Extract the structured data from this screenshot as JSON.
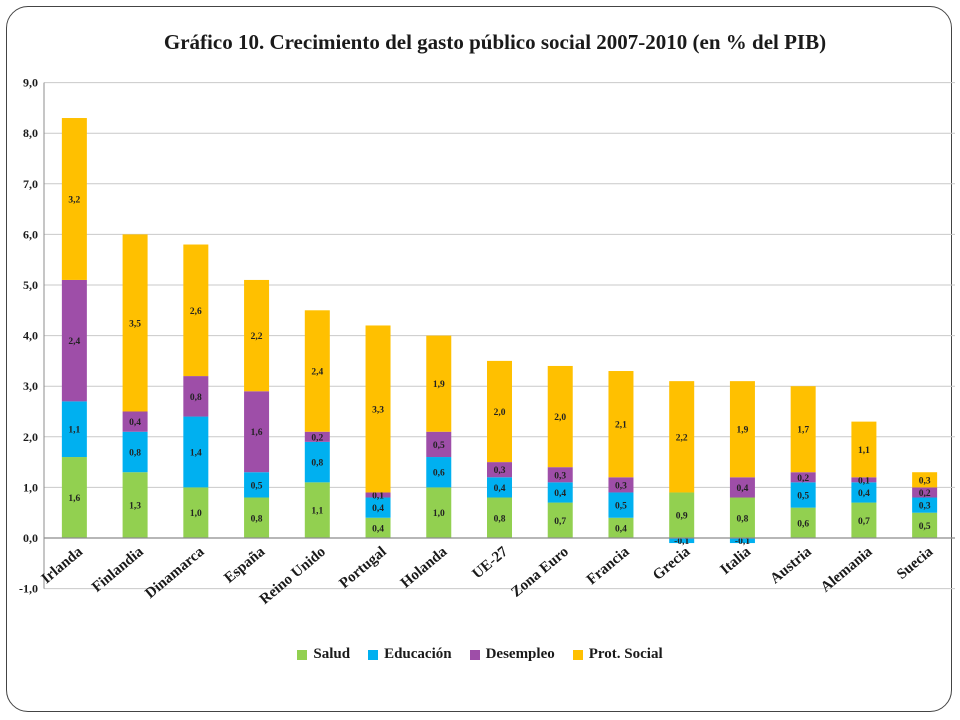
{
  "chart_data": {
    "type": "bar",
    "stacked": true,
    "title": "Gráfico 10. Crecimiento del gasto público social 2007-2010 (en % del PIB)",
    "categories": [
      "Irlanda",
      "Finlandia",
      "Dinamarca",
      "España",
      "Reino Unido",
      "Portugal",
      "Holanda",
      "UE-27",
      "Zona Euro",
      "Francia",
      "Grecia",
      "Italia",
      "Austria",
      "Alemania",
      "Suecia"
    ],
    "series": [
      {
        "name": "Salud",
        "color": "#92d050",
        "values": [
          1.6,
          1.3,
          1.0,
          0.8,
          1.1,
          0.4,
          1.0,
          0.8,
          0.7,
          0.4,
          0.9,
          0.8,
          0.6,
          0.7,
          0.5
        ]
      },
      {
        "name": "Educación",
        "color": "#00b0f0",
        "values": [
          1.1,
          0.8,
          1.4,
          0.5,
          0.8,
          0.4,
          0.6,
          0.4,
          0.4,
          0.5,
          -0.1,
          -0.1,
          0.5,
          0.4,
          0.3
        ]
      },
      {
        "name": "Desempleo",
        "color": "#9e4ea8",
        "values": [
          2.4,
          0.4,
          0.8,
          1.6,
          0.2,
          0.1,
          0.5,
          0.3,
          0.3,
          0.3,
          0.0,
          0.4,
          0.2,
          0.1,
          0.2
        ]
      },
      {
        "name": "Prot. Social",
        "color": "#ffc000",
        "values": [
          3.2,
          3.5,
          2.6,
          2.2,
          2.4,
          3.3,
          1.9,
          2.0,
          2.0,
          2.1,
          2.2,
          1.9,
          1.7,
          1.1,
          0.3
        ]
      }
    ],
    "ylim": [
      -1.0,
      9.0
    ],
    "yticks": [
      -1.0,
      0.0,
      1.0,
      2.0,
      3.0,
      4.0,
      5.0,
      6.0,
      7.0,
      8.0,
      9.0
    ],
    "ytick_labels": [
      "-1,0",
      "0,0",
      "1,0",
      "2,0",
      "3,0",
      "4,0",
      "5,0",
      "6,0",
      "7,0",
      "8,0",
      "9,0"
    ],
    "grid": true,
    "legend_position": "bottom"
  }
}
